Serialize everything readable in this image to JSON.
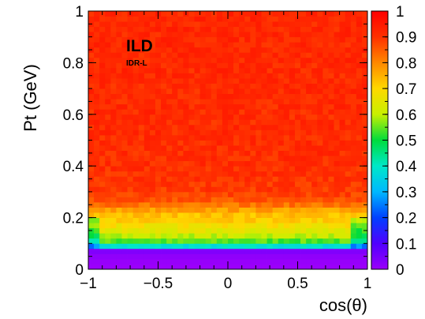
{
  "chart_data": {
    "type": "heatmap",
    "title": "",
    "xlabel": "cos(θ)",
    "ylabel": "Pt (GeV)",
    "xlim": [
      -1,
      1
    ],
    "ylim": [
      0,
      1
    ],
    "zlim": [
      0,
      1
    ],
    "x_ticks": [
      "−1",
      "−0.5",
      "0",
      "0.5",
      "1"
    ],
    "y_ticks": [
      "0",
      "0.2",
      "0.4",
      "0.6",
      "0.8",
      "1"
    ],
    "colorbar_ticks": [
      "0",
      "0.1",
      "0.2",
      "0.3",
      "0.4",
      "0.5",
      "0.6",
      "0.7",
      "0.8",
      "0.9",
      "1"
    ],
    "bins": {
      "x": 50,
      "y": 50
    },
    "pt_efficiency_profile": [
      {
        "pt": 0.02,
        "value": 0.0
      },
      {
        "pt": 0.06,
        "value": 0.02
      },
      {
        "pt": 0.08,
        "value": 0.05
      },
      {
        "pt": 0.09,
        "value": 0.38
      },
      {
        "pt": 0.1,
        "value": 0.5
      },
      {
        "pt": 0.12,
        "value": 0.58
      },
      {
        "pt": 0.14,
        "value": 0.63
      },
      {
        "pt": 0.16,
        "value": 0.66
      },
      {
        "pt": 0.18,
        "value": 0.7
      },
      {
        "pt": 0.2,
        "value": 0.72
      },
      {
        "pt": 0.22,
        "value": 0.74
      },
      {
        "pt": 0.24,
        "value": 0.8
      },
      {
        "pt": 0.26,
        "value": 0.85
      },
      {
        "pt": 0.3,
        "value": 0.89
      },
      {
        "pt": 0.4,
        "value": 0.91
      },
      {
        "pt": 1.0,
        "value": 0.92
      }
    ],
    "edge_dip": {
      "abs_cos_from": 0.9,
      "value_drop": 0.12,
      "max_pt": 0.2
    },
    "annotations": [
      "ILD",
      "IDR-L"
    ],
    "palette": [
      "#9b00fb",
      "#5000fe",
      "#0040ff",
      "#00b8ff",
      "#00e8c8",
      "#00dc3c",
      "#c8f000",
      "#ffd800",
      "#ff8800",
      "#ff3000",
      "#ff0000"
    ],
    "grid": false,
    "legend": "colorbar-right"
  }
}
